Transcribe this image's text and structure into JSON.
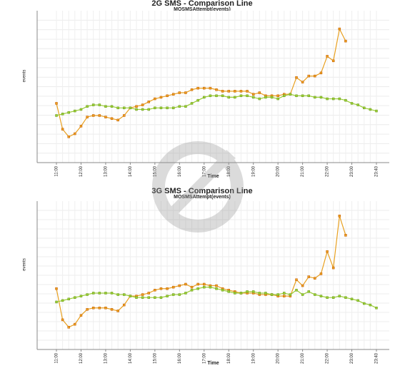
{
  "chart_data": [
    {
      "type": "line",
      "title": "2G SMS - Comparison Line",
      "subtitle": "MOSMSAttempt(events)",
      "x_label": "Time",
      "y_label": "events",
      "categories": [
        "11:00",
        null,
        null,
        null,
        "12:00",
        null,
        null,
        null,
        "13:00",
        null,
        null,
        null,
        "14:00",
        null,
        null,
        null,
        "15:00",
        null,
        null,
        null,
        "16:00",
        null,
        null,
        null,
        "17:00",
        null,
        null,
        null,
        "18:00",
        null,
        null,
        null,
        "19:00",
        null,
        null,
        null,
        "20:00",
        null,
        null,
        null,
        "21:00",
        null,
        null,
        null,
        "22:00",
        null,
        null,
        null,
        "23:00",
        null,
        null,
        null,
        "23:40"
      ],
      "ylim": [
        0,
        100
      ],
      "grid": true,
      "series": [
        {
          "color": "#e8a020",
          "values": [
            39,
            22,
            17,
            19,
            24,
            30,
            31,
            31,
            30,
            29,
            28,
            31,
            36,
            37,
            38,
            40,
            42,
            43,
            44,
            45,
            46,
            46,
            48,
            49,
            49,
            49,
            48,
            47,
            47,
            47,
            47,
            47,
            45,
            46,
            44,
            44,
            44,
            45,
            45,
            56,
            53,
            57,
            57,
            59,
            70,
            67,
            88,
            80,
            null,
            null,
            null,
            null,
            null
          ]
        },
        {
          "color": "#9acd32",
          "values": [
            31,
            32,
            33,
            34,
            35,
            37,
            38,
            38,
            37,
            37,
            36,
            36,
            36,
            35,
            35,
            35,
            36,
            36,
            36,
            36,
            37,
            37,
            39,
            41,
            43,
            44,
            44,
            44,
            43,
            43,
            44,
            44,
            43,
            42,
            43,
            43,
            42,
            44,
            45,
            44,
            44,
            44,
            43,
            43,
            42,
            42,
            42,
            41,
            39,
            38,
            36,
            35,
            34
          ]
        }
      ]
    },
    {
      "type": "line",
      "title": "3G SMS - Comparison Line",
      "subtitle": "MOSMSAttempt(events)",
      "x_label": "Time",
      "y_label": "events",
      "categories": [
        "11:00",
        null,
        null,
        null,
        "12:00",
        null,
        null,
        null,
        "13:00",
        null,
        null,
        null,
        "14:00",
        null,
        null,
        null,
        "15:00",
        null,
        null,
        null,
        "16:00",
        null,
        null,
        null,
        "17:00",
        null,
        null,
        null,
        "18:00",
        null,
        null,
        null,
        "19:00",
        null,
        null,
        null,
        "20:00",
        null,
        null,
        null,
        "21:00",
        null,
        null,
        null,
        "22:00",
        null,
        null,
        null,
        "23:00",
        null,
        null,
        null,
        "23:40"
      ],
      "ylim": [
        0,
        100
      ],
      "grid": true,
      "series": [
        {
          "color": "#e8a020",
          "values": [
            41,
            20,
            15,
            17,
            23,
            27,
            28,
            28,
            28,
            27,
            26,
            30,
            36,
            36,
            37,
            38,
            40,
            41,
            41,
            42,
            43,
            44,
            42,
            44,
            44,
            43,
            43,
            41,
            40,
            39,
            38,
            38,
            38,
            37,
            37,
            37,
            36,
            36,
            36,
            47,
            43,
            49,
            48,
            51,
            66,
            55,
            90,
            77,
            null,
            null,
            null,
            null,
            null
          ]
        },
        {
          "color": "#9acd32",
          "values": [
            32,
            33,
            34,
            35,
            36,
            37,
            38,
            38,
            38,
            38,
            37,
            37,
            36,
            35,
            35,
            35,
            35,
            35,
            36,
            37,
            37,
            38,
            40,
            41,
            42,
            42,
            41,
            40,
            39,
            38,
            38,
            39,
            39,
            38,
            38,
            37,
            37,
            38,
            37,
            40,
            37,
            39,
            37,
            36,
            35,
            35,
            36,
            35,
            34,
            33,
            31,
            30,
            28
          ]
        }
      ]
    }
  ]
}
